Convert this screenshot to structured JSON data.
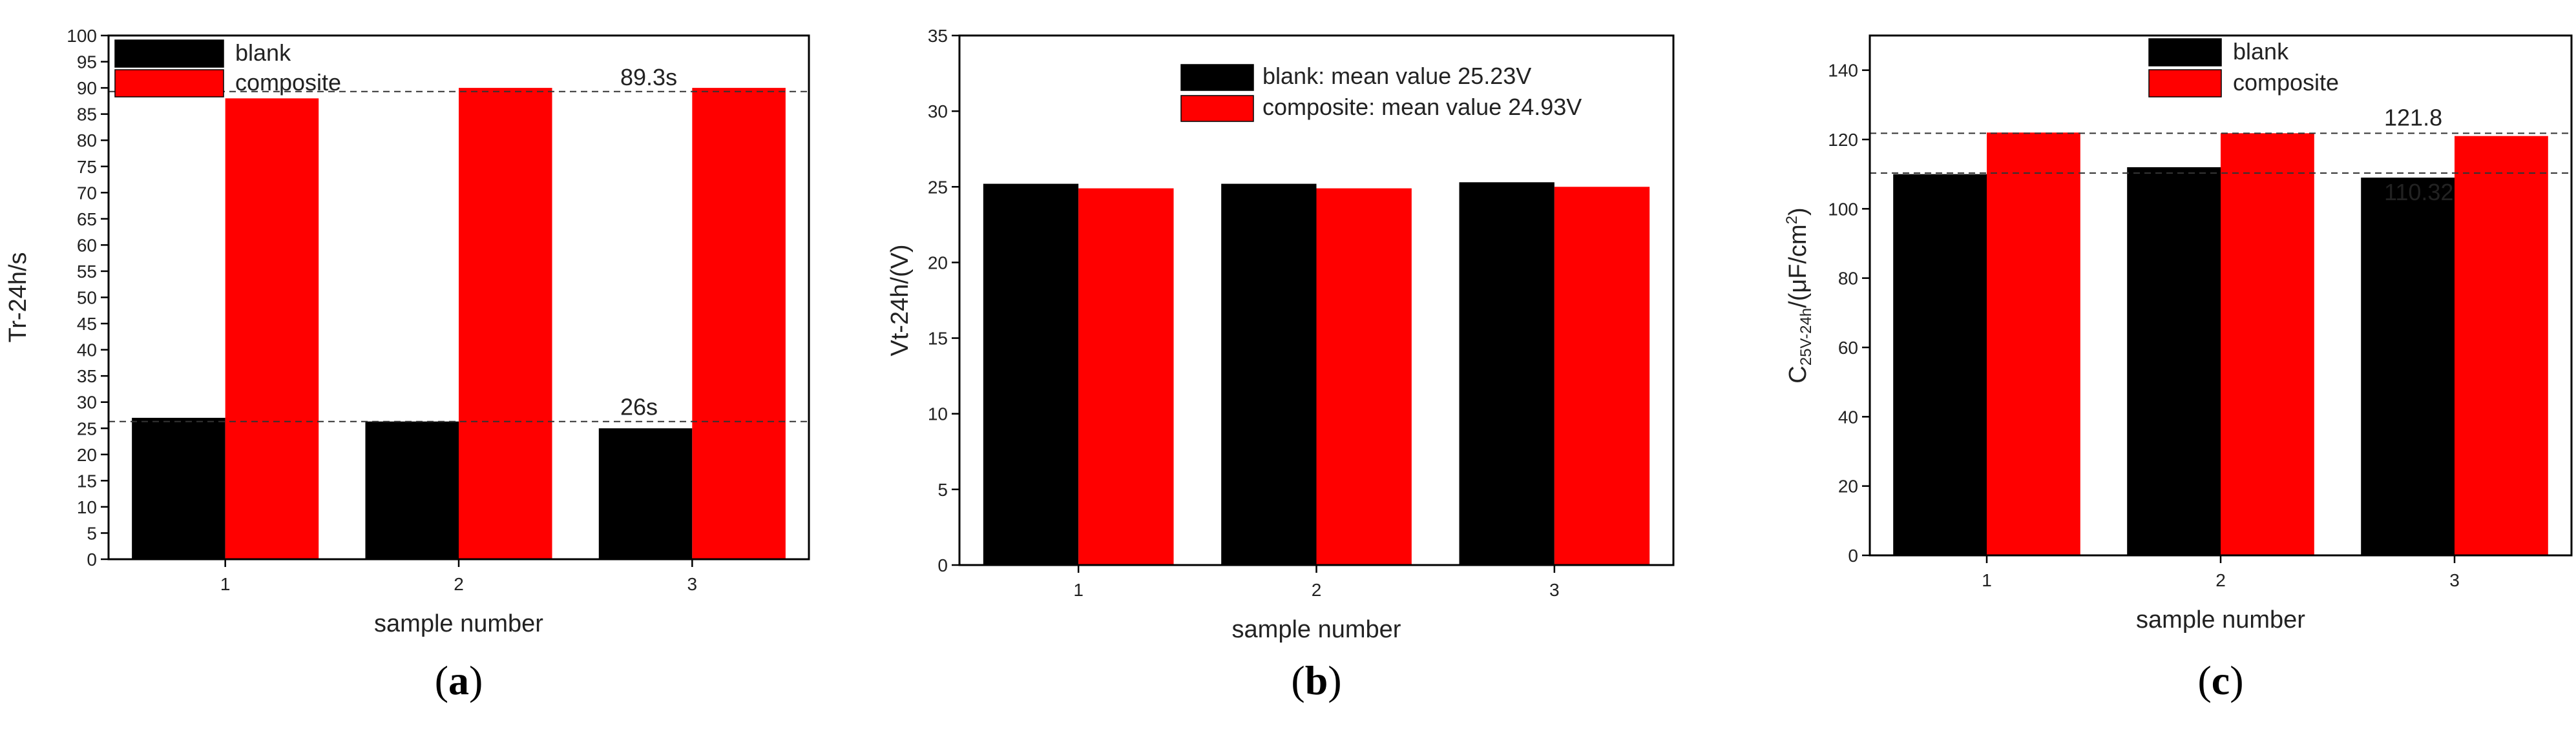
{
  "chart_data": [
    {
      "type": "bar",
      "panel_label": "a",
      "categories": [
        "1",
        "2",
        "3"
      ],
      "series": [
        {
          "name": "blank",
          "color": "#000000",
          "values": [
            27,
            26.3,
            25
          ]
        },
        {
          "name": "composite",
          "color": "#ff0000",
          "values": [
            88,
            90,
            90
          ]
        }
      ],
      "xlabel": "sample number",
      "ylabel": "Tr-24h/s",
      "ylim": [
        0,
        100
      ],
      "yticks": [
        0,
        5,
        10,
        15,
        20,
        25,
        30,
        35,
        40,
        45,
        50,
        55,
        60,
        65,
        70,
        75,
        80,
        85,
        90,
        95,
        100
      ],
      "legend": [
        {
          "label": "blank",
          "color": "#000000"
        },
        {
          "label": "composite",
          "color": "#ff0000"
        }
      ],
      "legend_position": "top-left",
      "reference_lines": [
        {
          "y": 89.3,
          "label": "89.3s"
        },
        {
          "y": 26.3,
          "label": "26s"
        }
      ]
    },
    {
      "type": "bar",
      "panel_label": "b",
      "categories": [
        "1",
        "2",
        "3"
      ],
      "series": [
        {
          "name": "blank",
          "color": "#000000",
          "values": [
            25.2,
            25.2,
            25.3
          ]
        },
        {
          "name": "composite",
          "color": "#ff0000",
          "values": [
            24.9,
            24.9,
            25.0
          ]
        }
      ],
      "xlabel": "sample number",
      "ylabel": "Vt-24h/(V)",
      "ylim": [
        0,
        35
      ],
      "yticks": [
        0,
        5,
        10,
        15,
        20,
        25,
        30,
        35
      ],
      "legend": [
        {
          "label": "blank: mean value 25.23V",
          "color": "#000000"
        },
        {
          "label": "composite: mean value 24.93V",
          "color": "#ff0000"
        }
      ],
      "legend_position": "top-center",
      "reference_lines": []
    },
    {
      "type": "bar",
      "panel_label": "c",
      "categories": [
        "1",
        "2",
        "3"
      ],
      "series": [
        {
          "name": "blank",
          "color": "#000000",
          "values": [
            110,
            112,
            109
          ]
        },
        {
          "name": "composite",
          "color": "#ff0000",
          "values": [
            122,
            121.8,
            121
          ]
        }
      ],
      "xlabel": "sample number",
      "ylabel_main": "C",
      "ylabel_sub": "25V-24h",
      "ylabel_unit_pre": "/(μF/cm",
      "ylabel_sup": "2",
      "ylabel_post": ")",
      "ylim": [
        0,
        150
      ],
      "yticks": [
        0,
        20,
        40,
        60,
        80,
        100,
        120,
        140
      ],
      "legend": [
        {
          "label": "blank",
          "color": "#000000"
        },
        {
          "label": "composite",
          "color": "#ff0000"
        }
      ],
      "legend_position": "top-center",
      "reference_lines": [
        {
          "y": 121.8,
          "label": "121.8"
        },
        {
          "y": 110.32,
          "label": "110.32"
        }
      ]
    }
  ]
}
